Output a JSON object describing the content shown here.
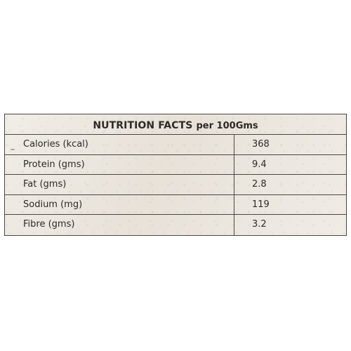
{
  "label": {
    "title_main": "NUTRITION FACTS",
    "title_sub": "per 100Gms",
    "rows": [
      {
        "name": "Calories (kcal)",
        "value": "368"
      },
      {
        "name": "Protein (gms)",
        "value": "9.4"
      },
      {
        "name": "Fat (gms)",
        "value": "2.8"
      },
      {
        "name": "Sodium (mg)",
        "value": "119"
      },
      {
        "name": "Fibre (gms)",
        "value": "3.2"
      }
    ]
  },
  "colors": {
    "card_background": "#ece7df",
    "border": "#4b4641",
    "text": "#2e2a26"
  }
}
